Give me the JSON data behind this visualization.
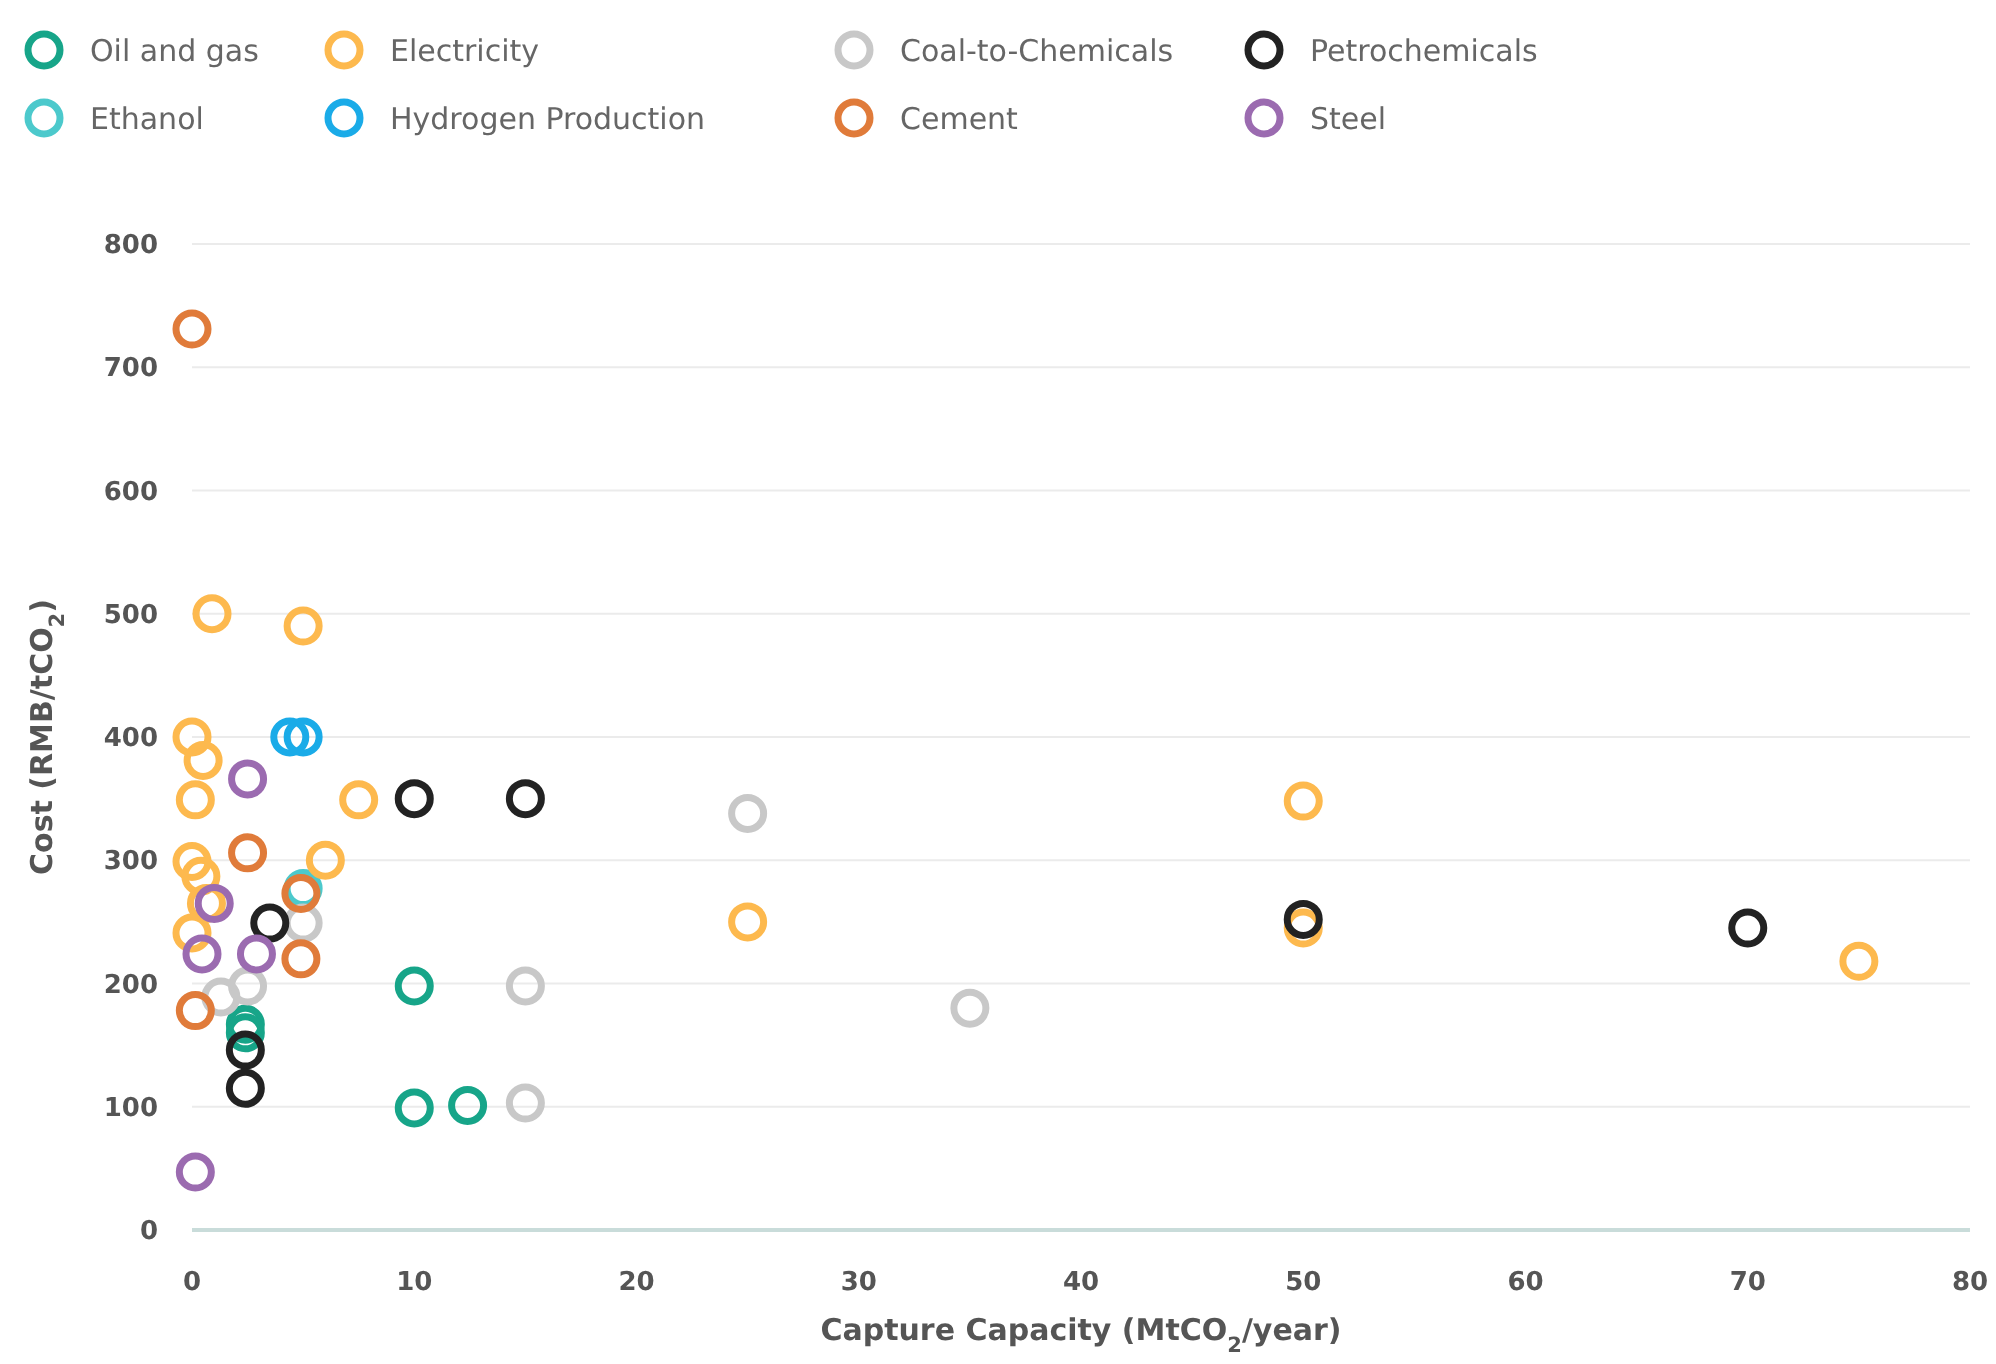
{
  "chart_data": {
    "type": "scatter",
    "xlabel": "Capture Capacity (MtCO$_{2}$/year)",
    "ylabel": "Cost (RMB/tCO$_{2}$)",
    "xlim": [
      0,
      80
    ],
    "xticks": [
      0,
      10,
      20,
      30,
      40,
      50,
      60,
      70,
      80
    ],
    "ylim": [
      0,
      800
    ],
    "yticks": [
      0,
      100,
      200,
      300,
      400,
      500,
      600,
      700,
      800
    ],
    "grid": "y",
    "legend": "top left",
    "marker": "circle",
    "series": [
      {
        "name": "Oil and gas",
        "color": "#17a589",
        "x": [
          2.4,
          2.4,
          10,
          10,
          12.4
        ],
        "values": [
          167,
          160,
          198,
          99,
          101
        ]
      },
      {
        "name": "Ethanol",
        "color": "#4cc9cc",
        "x": [
          5
        ],
        "values": [
          277
        ]
      },
      {
        "name": "Electricity",
        "color": "#fdb94e",
        "x": [
          0.9,
          5,
          0,
          0.5,
          0.15,
          7.5,
          0,
          0.4,
          0.65,
          6,
          0,
          25,
          50,
          50,
          75
        ],
        "values": [
          500,
          490,
          400,
          381,
          349,
          349,
          299,
          287,
          265,
          300,
          241,
          250,
          348,
          245,
          218
        ]
      },
      {
        "name": "Hydrogen Production",
        "color": "#1aabe8",
        "x": [
          4.4,
          5
        ],
        "values": [
          400,
          400
        ]
      },
      {
        "name": "Coal-to-Chemicals",
        "color": "#c8c8c8",
        "x": [
          5,
          2.5,
          1.3,
          15,
          15,
          25,
          35
        ],
        "values": [
          249,
          198,
          189,
          198,
          103,
          338,
          180
        ]
      },
      {
        "name": "Cement",
        "color": "#e07b3a",
        "x": [
          0,
          2.5,
          4.9,
          4.9,
          0.15
        ],
        "values": [
          731,
          306,
          273,
          220,
          178
        ]
      },
      {
        "name": "Petrochemicals",
        "color": "#222222",
        "x": [
          10,
          15,
          3.5,
          2.4,
          2.4,
          50,
          70
        ],
        "values": [
          350,
          350,
          249,
          146,
          115,
          252,
          245
        ]
      },
      {
        "name": "Steel",
        "color": "#9b6bb0",
        "x": [
          2.5,
          1,
          0.45,
          2.9,
          0.15
        ],
        "values": [
          366,
          265,
          224,
          224,
          47
        ]
      }
    ]
  }
}
